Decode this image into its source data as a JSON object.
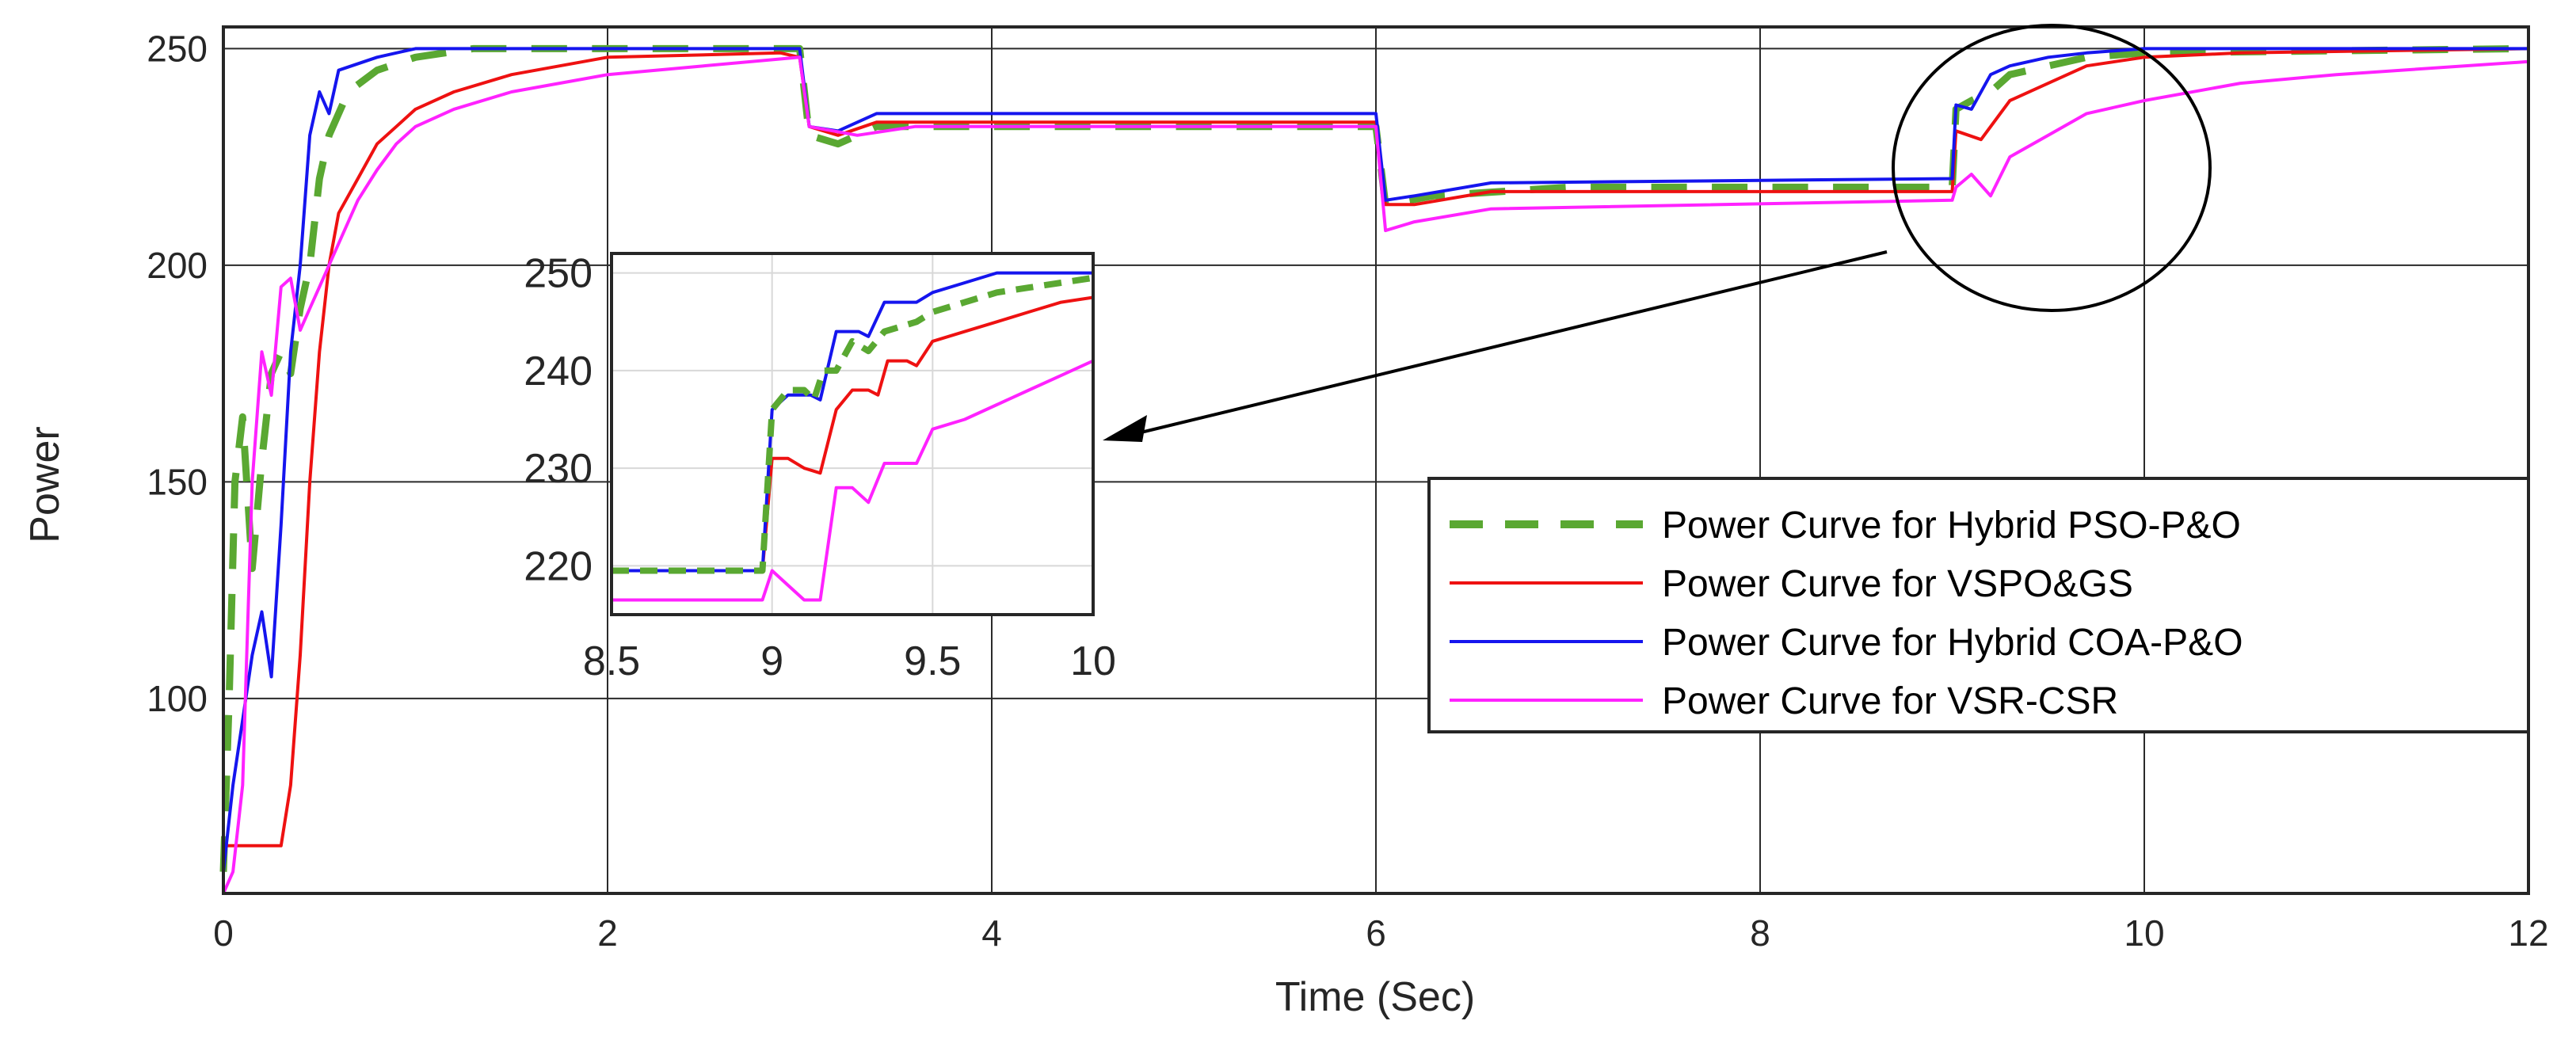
{
  "chart_data": {
    "type": "line",
    "xlabel": "Time (Sec)",
    "ylabel": "Power",
    "xlim": [
      0,
      12
    ],
    "ylim": [
      55,
      255
    ],
    "xticks": [
      0,
      2,
      4,
      6,
      8,
      10,
      12
    ],
    "yticks": [
      100,
      150,
      200,
      250
    ],
    "grid": true,
    "legend_position": "lower-right",
    "series": [
      {
        "name": "Power Curve for Hybrid PSO-P&O",
        "color": "#5aa832",
        "dash": "dashed",
        "points": [
          [
            0,
            60
          ],
          [
            0.03,
            100
          ],
          [
            0.06,
            150
          ],
          [
            0.1,
            165
          ],
          [
            0.15,
            130
          ],
          [
            0.2,
            155
          ],
          [
            0.25,
            175
          ],
          [
            0.3,
            180
          ],
          [
            0.35,
            175
          ],
          [
            0.4,
            190
          ],
          [
            0.45,
            200
          ],
          [
            0.5,
            220
          ],
          [
            0.55,
            230
          ],
          [
            0.65,
            240
          ],
          [
            0.8,
            245
          ],
          [
            1.0,
            248
          ],
          [
            1.3,
            250
          ],
          [
            3.0,
            250
          ],
          [
            3.05,
            230
          ],
          [
            3.2,
            228
          ],
          [
            3.4,
            232
          ],
          [
            6.0,
            232
          ],
          [
            6.05,
            214
          ],
          [
            6.3,
            216
          ],
          [
            7.0,
            218
          ],
          [
            9.0,
            218
          ],
          [
            9.02,
            236
          ],
          [
            9.1,
            238
          ],
          [
            9.2,
            240
          ],
          [
            9.3,
            244
          ],
          [
            9.5,
            246
          ],
          [
            9.7,
            248
          ],
          [
            10.0,
            249
          ],
          [
            12,
            250
          ]
        ]
      },
      {
        "name": "Power Curve for VSPO&GS",
        "color": "#ee1111",
        "dash": "solid",
        "points": [
          [
            0,
            66
          ],
          [
            0.3,
            66
          ],
          [
            0.35,
            80
          ],
          [
            0.4,
            110
          ],
          [
            0.45,
            150
          ],
          [
            0.5,
            180
          ],
          [
            0.55,
            200
          ],
          [
            0.6,
            212
          ],
          [
            0.7,
            220
          ],
          [
            0.8,
            228
          ],
          [
            0.9,
            232
          ],
          [
            1.0,
            236
          ],
          [
            1.2,
            240
          ],
          [
            1.5,
            244
          ],
          [
            2.0,
            248
          ],
          [
            2.9,
            249
          ],
          [
            3.0,
            248
          ],
          [
            3.05,
            232
          ],
          [
            3.2,
            230
          ],
          [
            3.4,
            233
          ],
          [
            6.0,
            233
          ],
          [
            6.05,
            214
          ],
          [
            6.2,
            214
          ],
          [
            6.6,
            217
          ],
          [
            9.0,
            217
          ],
          [
            9.02,
            231
          ],
          [
            9.15,
            229
          ],
          [
            9.3,
            238
          ],
          [
            9.5,
            242
          ],
          [
            9.7,
            246
          ],
          [
            10.0,
            248
          ],
          [
            10.5,
            249
          ],
          [
            12,
            250
          ]
        ]
      },
      {
        "name": "Power Curve for Hybrid COA-P&O",
        "color": "#1515ee",
        "dash": "solid",
        "points": [
          [
            0,
            60
          ],
          [
            0.05,
            80
          ],
          [
            0.1,
            95
          ],
          [
            0.15,
            110
          ],
          [
            0.2,
            120
          ],
          [
            0.25,
            105
          ],
          [
            0.3,
            140
          ],
          [
            0.35,
            180
          ],
          [
            0.4,
            200
          ],
          [
            0.45,
            230
          ],
          [
            0.5,
            240
          ],
          [
            0.55,
            235
          ],
          [
            0.6,
            245
          ],
          [
            0.8,
            248
          ],
          [
            1.0,
            250
          ],
          [
            2.9,
            250
          ],
          [
            3.0,
            250
          ],
          [
            3.05,
            232
          ],
          [
            3.2,
            231
          ],
          [
            3.4,
            235
          ],
          [
            6.0,
            235
          ],
          [
            6.05,
            215
          ],
          [
            6.2,
            216
          ],
          [
            6.6,
            219
          ],
          [
            9.0,
            220
          ],
          [
            9.02,
            237
          ],
          [
            9.1,
            236
          ],
          [
            9.2,
            244
          ],
          [
            9.3,
            246
          ],
          [
            9.5,
            248
          ],
          [
            9.7,
            249
          ],
          [
            10.0,
            250
          ],
          [
            12,
            250
          ]
        ]
      },
      {
        "name": "Power Curve for VSR-CSR",
        "color": "#ff22ff",
        "dash": "solid",
        "points": [
          [
            0,
            55
          ],
          [
            0.05,
            60
          ],
          [
            0.1,
            80
          ],
          [
            0.15,
            150
          ],
          [
            0.2,
            180
          ],
          [
            0.25,
            170
          ],
          [
            0.3,
            195
          ],
          [
            0.35,
            197
          ],
          [
            0.4,
            185
          ],
          [
            0.45,
            190
          ],
          [
            0.5,
            195
          ],
          [
            0.6,
            205
          ],
          [
            0.7,
            215
          ],
          [
            0.8,
            222
          ],
          [
            0.9,
            228
          ],
          [
            1.0,
            232
          ],
          [
            1.2,
            236
          ],
          [
            1.5,
            240
          ],
          [
            2.0,
            244
          ],
          [
            2.5,
            246
          ],
          [
            3.0,
            248
          ],
          [
            3.05,
            232
          ],
          [
            3.3,
            230
          ],
          [
            3.6,
            232
          ],
          [
            6.0,
            232
          ],
          [
            6.05,
            208
          ],
          [
            6.2,
            210
          ],
          [
            6.6,
            213
          ],
          [
            9.0,
            215
          ],
          [
            9.02,
            218
          ],
          [
            9.1,
            221
          ],
          [
            9.2,
            216
          ],
          [
            9.3,
            225
          ],
          [
            9.5,
            230
          ],
          [
            9.7,
            235
          ],
          [
            10.0,
            238
          ],
          [
            10.5,
            242
          ],
          [
            11.0,
            244
          ],
          [
            12,
            247
          ]
        ]
      }
    ],
    "inset": {
      "xlim": [
        8.5,
        10
      ],
      "ylim": [
        215,
        252
      ],
      "xticks": [
        8.5,
        9,
        9.5,
        10
      ],
      "yticks": [
        220,
        230,
        240,
        250
      ],
      "grid": true,
      "series": [
        {
          "name": "Power Curve for Hybrid PSO-P&O",
          "points": [
            [
              8.5,
              219.5
            ],
            [
              8.97,
              219.5
            ],
            [
              9.0,
              236
            ],
            [
              9.05,
              238
            ],
            [
              9.1,
              238
            ],
            [
              9.13,
              237
            ],
            [
              9.16,
              240
            ],
            [
              9.2,
              240
            ],
            [
              9.25,
              243
            ],
            [
              9.3,
              242
            ],
            [
              9.35,
              244
            ],
            [
              9.45,
              245
            ],
            [
              9.5,
              246
            ],
            [
              9.6,
              247
            ],
            [
              9.7,
              248
            ],
            [
              9.8,
              248.5
            ],
            [
              9.9,
              249
            ],
            [
              10,
              249.5
            ]
          ]
        },
        {
          "name": "Power Curve for VSPO&GS",
          "points": [
            [
              8.5,
              219.5
            ],
            [
              8.97,
              219.5
            ],
            [
              9.0,
              231
            ],
            [
              9.05,
              231
            ],
            [
              9.1,
              230
            ],
            [
              9.15,
              229.5
            ],
            [
              9.2,
              236
            ],
            [
              9.25,
              238
            ],
            [
              9.3,
              238
            ],
            [
              9.33,
              237.5
            ],
            [
              9.36,
              241
            ],
            [
              9.42,
              241
            ],
            [
              9.45,
              240.5
            ],
            [
              9.5,
              243
            ],
            [
              9.6,
              244
            ],
            [
              9.7,
              245
            ],
            [
              9.8,
              246
            ],
            [
              9.9,
              247
            ],
            [
              10,
              247.5
            ]
          ]
        },
        {
          "name": "Power Curve for Hybrid COA-P&O",
          "points": [
            [
              8.5,
              219.5
            ],
            [
              8.97,
              219.5
            ],
            [
              9.0,
              236
            ],
            [
              9.05,
              237.5
            ],
            [
              9.12,
              237.5
            ],
            [
              9.15,
              237
            ],
            [
              9.2,
              244
            ],
            [
              9.27,
              244
            ],
            [
              9.3,
              243.5
            ],
            [
              9.35,
              247
            ],
            [
              9.45,
              247
            ],
            [
              9.5,
              248
            ],
            [
              9.6,
              249
            ],
            [
              9.7,
              250
            ],
            [
              9.8,
              250
            ],
            [
              10,
              250
            ]
          ]
        },
        {
          "name": "Power Curve for VSR-CSR",
          "points": [
            [
              8.5,
              216.5
            ],
            [
              8.97,
              216.5
            ],
            [
              9.0,
              219.5
            ],
            [
              9.05,
              218
            ],
            [
              9.1,
              216.5
            ],
            [
              9.15,
              216.5
            ],
            [
              9.2,
              228
            ],
            [
              9.25,
              228
            ],
            [
              9.3,
              226.5
            ],
            [
              9.35,
              230.5
            ],
            [
              9.45,
              230.5
            ],
            [
              9.5,
              234
            ],
            [
              9.6,
              235
            ],
            [
              9.7,
              236.5
            ],
            [
              9.8,
              238
            ],
            [
              9.9,
              239.5
            ],
            [
              10,
              241
            ]
          ]
        }
      ]
    }
  }
}
